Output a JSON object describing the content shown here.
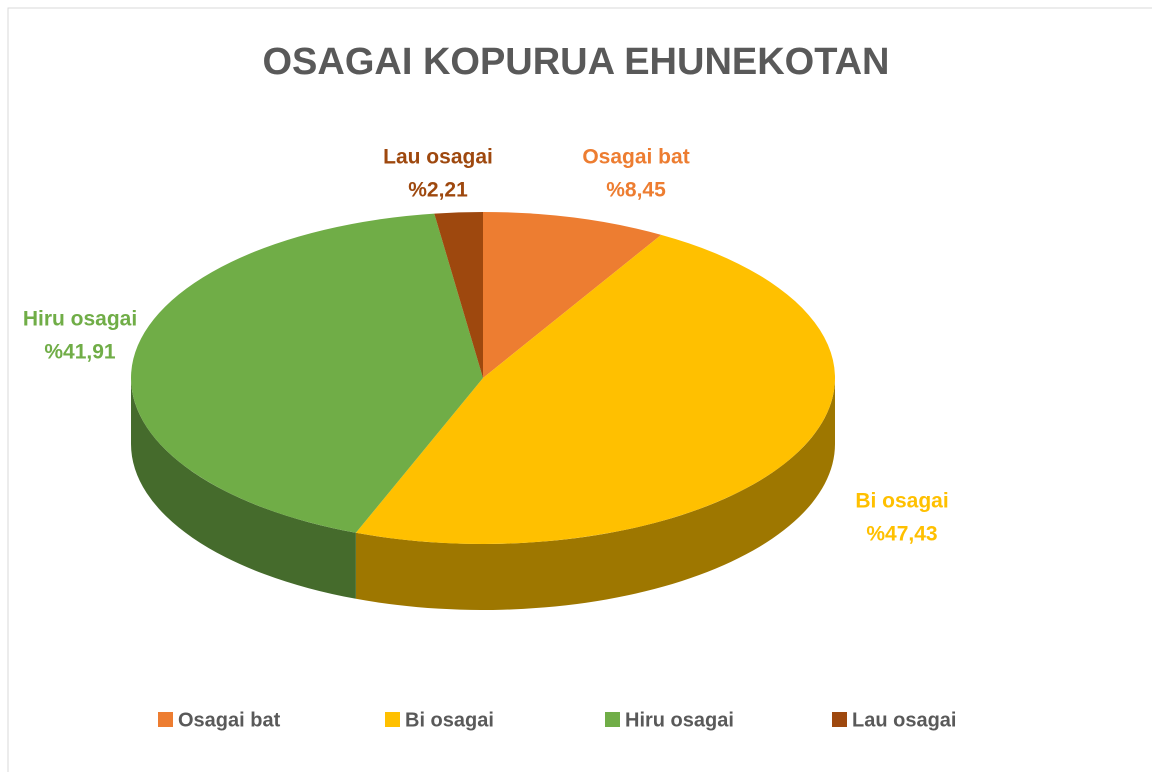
{
  "chart_data": {
    "type": "pie",
    "title": "OSAGAI KOPURUA EHUNEKOTAN",
    "categories": [
      "Osagai bat",
      "Bi osagai",
      "Hiru osagai",
      "Lau osagai"
    ],
    "values": [
      8.45,
      47.43,
      41.91,
      2.21
    ],
    "value_labels": [
      "%8,45",
      "%47,43",
      "%41,91",
      "%2,21"
    ],
    "colors": [
      "#ED7D31",
      "#FFC000",
      "#70AD47",
      "#9E480E"
    ],
    "legend": "bottom"
  }
}
